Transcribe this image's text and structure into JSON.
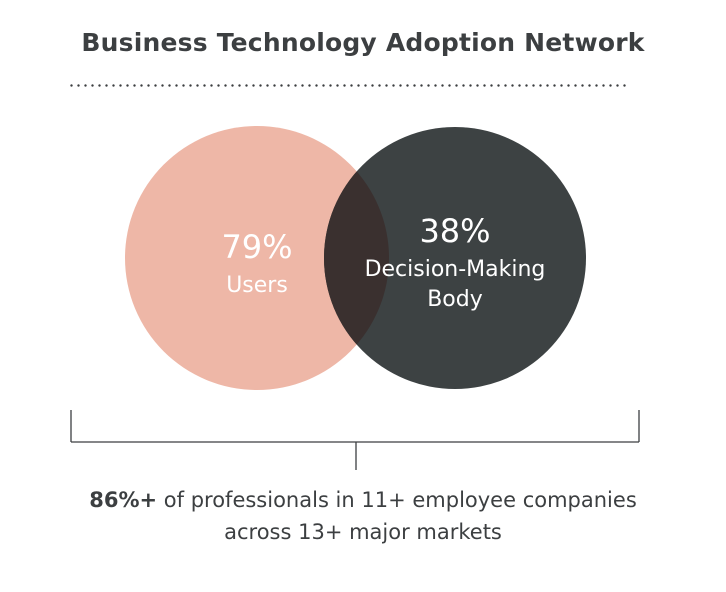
{
  "title": "Business Technology Adoption Network",
  "colors": {
    "users_circle": "#eeb7a7",
    "decision_circle": "#3d4243",
    "overlap": "#3a302f",
    "text_dark": "#3c3f41",
    "circle_text": "#ffffff"
  },
  "venn": {
    "users": {
      "value": "79%",
      "label": "Users"
    },
    "decision": {
      "value": "38%",
      "label_line1": "Decision-Making",
      "label_line2": "Body"
    }
  },
  "caption": {
    "highlight": "86%+",
    "line1_rest": " of professionals in 11+ employee companies",
    "line2": "across 13+ major markets"
  }
}
